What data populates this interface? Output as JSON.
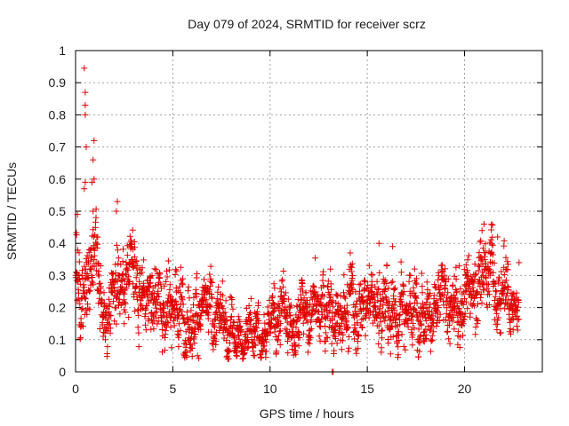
{
  "chart_data": {
    "type": "scatter",
    "title": "Day 079 of 2024, SRMTID for receiver scrz",
    "xlabel": "GPS time / hours",
    "ylabel": "SRMTID / TECUs",
    "xlim": [
      0,
      24
    ],
    "ylim": [
      0,
      1
    ],
    "xticks": [
      0,
      5,
      10,
      15,
      20
    ],
    "yticks": [
      0,
      0.1,
      0.2,
      0.3,
      0.4,
      0.5,
      0.6,
      0.7,
      0.8,
      0.9,
      1
    ],
    "xtick_labels": [
      "0",
      "5",
      "10",
      "15",
      "20"
    ],
    "ytick_labels": [
      "0",
      "0.1",
      "0.2",
      "0.3",
      "0.4",
      "0.5",
      "0.6",
      "0.7",
      "0.8",
      "0.9",
      "1"
    ],
    "grid": true,
    "marker": "plus",
    "color": "#e00000",
    "series": [
      {
        "name": "SRMTID",
        "approx_points": 2200,
        "x_range": [
          0,
          22.8
        ],
        "envelope_hours": [
          0,
          0.5,
          1,
          1.5,
          2,
          2.5,
          3,
          4,
          5,
          6,
          7,
          8,
          9,
          9.5,
          10,
          11,
          12,
          13,
          14,
          15,
          16,
          17,
          18,
          19,
          20,
          20.5,
          21,
          21.5,
          22,
          22.5,
          22.8
        ],
        "envelope_median": [
          0.28,
          0.27,
          0.33,
          0.13,
          0.28,
          0.26,
          0.27,
          0.22,
          0.21,
          0.18,
          0.16,
          0.13,
          0.12,
          0.11,
          0.18,
          0.17,
          0.16,
          0.19,
          0.2,
          0.23,
          0.22,
          0.2,
          0.2,
          0.21,
          0.24,
          0.27,
          0.31,
          0.3,
          0.28,
          0.2,
          0.18
        ],
        "envelope_spread": [
          0.1,
          0.1,
          0.1,
          0.05,
          0.09,
          0.08,
          0.08,
          0.07,
          0.08,
          0.07,
          0.06,
          0.05,
          0.05,
          0.04,
          0.06,
          0.06,
          0.06,
          0.06,
          0.07,
          0.07,
          0.08,
          0.07,
          0.07,
          0.07,
          0.08,
          0.07,
          0.07,
          0.07,
          0.06,
          0.05,
          0.04
        ],
        "notable_points": [
          {
            "x": 0.1,
            "y": 0.49
          },
          {
            "x": 0.45,
            "y": 0.945
          },
          {
            "x": 0.5,
            "y": 0.87
          },
          {
            "x": 0.5,
            "y": 0.83
          },
          {
            "x": 0.5,
            "y": 0.8
          },
          {
            "x": 0.55,
            "y": 0.7
          },
          {
            "x": 0.5,
            "y": 0.59
          },
          {
            "x": 0.45,
            "y": 0.57
          },
          {
            "x": 0.95,
            "y": 0.72
          },
          {
            "x": 0.9,
            "y": 0.66
          },
          {
            "x": 0.95,
            "y": 0.6
          },
          {
            "x": 0.85,
            "y": 0.59
          },
          {
            "x": 0.9,
            "y": 0.5
          },
          {
            "x": 1.05,
            "y": 0.48
          },
          {
            "x": 2.15,
            "y": 0.53
          },
          {
            "x": 2.1,
            "y": 0.5
          },
          {
            "x": 13.2,
            "y": 0.0
          },
          {
            "x": 13.25,
            "y": 0.0
          },
          {
            "x": 21.0,
            "y": 0.46
          },
          {
            "x": 20.9,
            "y": 0.44
          },
          {
            "x": 21.7,
            "y": 0.42
          },
          {
            "x": 15.6,
            "y": 0.4
          },
          {
            "x": 16.3,
            "y": 0.39
          },
          {
            "x": 9.2,
            "y": 0.05
          },
          {
            "x": 22.8,
            "y": 0.34
          }
        ]
      }
    ]
  }
}
